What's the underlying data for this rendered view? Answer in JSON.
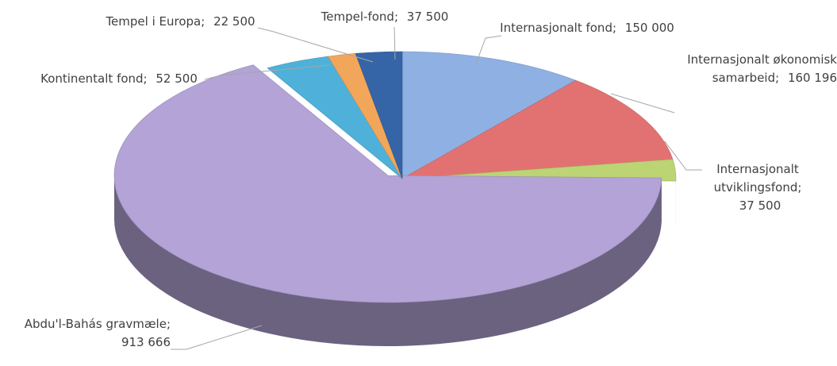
{
  "chart_data": {
    "type": "pie3d",
    "categories": [
      "Internasjonalt fond;",
      "Internasjonalt økonomisk samarbeid;",
      "Internasjonalt utviklingsfond;",
      "Abdu'l-Bahás gravmæle;",
      "Kontinentalt fond;",
      "Tempel i Europa;",
      "Tempel-fond;"
    ],
    "values": [
      150000,
      160196,
      37500,
      913666,
      52500,
      22500,
      37500
    ],
    "value_labels": [
      "150 000",
      "160 196",
      "37 500",
      "913 666",
      "52 500",
      "22 500",
      "37 500"
    ],
    "colors": [
      "#8fb0e2",
      "#e27272",
      "#bcd474",
      "#b3a3d6",
      "#4fb1d9",
      "#f2a65a",
      "#3565a6"
    ]
  }
}
